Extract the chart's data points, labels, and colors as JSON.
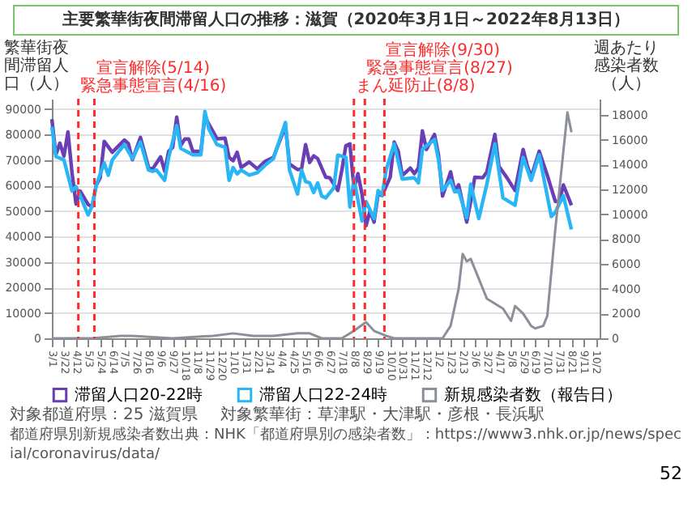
{
  "chart_data": {
    "type": "line",
    "title": "主要繁華街夜間滞留人口の推移：滋賀（2020年3月1日～2022年8月13日）",
    "ylabel": "繁華街夜間滞留人口（人）",
    "y2label": "週あたり感染者数（人）",
    "xlim": [
      "2020-03-01",
      "2022-10-09"
    ],
    "xticks": [
      {
        "value": "2020-03-01",
        "label": "3/1"
      },
      {
        "value": "2020-03-22",
        "label": "3/22"
      },
      {
        "value": "2020-04-12",
        "label": "4/12"
      },
      {
        "value": "2020-05-03",
        "label": "5/3"
      },
      {
        "value": "2020-05-24",
        "label": "5/24"
      },
      {
        "value": "2020-06-14",
        "label": "6/14"
      },
      {
        "value": "2020-07-05",
        "label": "7/5"
      },
      {
        "value": "2020-07-26",
        "label": "7/26"
      },
      {
        "value": "2020-08-16",
        "label": "8/16"
      },
      {
        "value": "2020-09-06",
        "label": "9/6"
      },
      {
        "value": "2020-09-27",
        "label": "9/27"
      },
      {
        "value": "2020-10-18",
        "label": "10/18"
      },
      {
        "value": "2020-11-08",
        "label": "11/8"
      },
      {
        "value": "2020-11-29",
        "label": "11/29"
      },
      {
        "value": "2020-12-20",
        "label": "12/20"
      },
      {
        "value": "2021-01-10",
        "label": "1/10"
      },
      {
        "value": "2021-01-31",
        "label": "1/31"
      },
      {
        "value": "2021-02-21",
        "label": "2/21"
      },
      {
        "value": "2021-03-14",
        "label": "3/14"
      },
      {
        "value": "2021-04-04",
        "label": "4/4"
      },
      {
        "value": "2021-04-25",
        "label": "4/25"
      },
      {
        "value": "2021-05-16",
        "label": "5/16"
      },
      {
        "value": "2021-06-06",
        "label": "6/6"
      },
      {
        "value": "2021-06-27",
        "label": "6/27"
      },
      {
        "value": "2021-07-18",
        "label": "7/18"
      },
      {
        "value": "2021-08-08",
        "label": "8/8"
      },
      {
        "value": "2021-08-29",
        "label": "8/29"
      },
      {
        "value": "2021-09-19",
        "label": "9/19"
      },
      {
        "value": "2021-10-10",
        "label": "10/10"
      },
      {
        "value": "2021-10-31",
        "label": "10/31"
      },
      {
        "value": "2021-11-21",
        "label": "11/21"
      },
      {
        "value": "2021-12-12",
        "label": "12/12"
      },
      {
        "value": "2022-01-02",
        "label": "1/2"
      },
      {
        "value": "2022-01-23",
        "label": "1/23"
      },
      {
        "value": "2022-02-13",
        "label": "2/13"
      },
      {
        "value": "2022-03-06",
        "label": "3/6"
      },
      {
        "value": "2022-03-27",
        "label": "3/27"
      },
      {
        "value": "2022-04-17",
        "label": "4/17"
      },
      {
        "value": "2022-05-08",
        "label": "5/8"
      },
      {
        "value": "2022-05-29",
        "label": "5/29"
      },
      {
        "value": "2022-06-19",
        "label": "6/19"
      },
      {
        "value": "2022-07-10",
        "label": "7/10"
      },
      {
        "value": "2022-07-31",
        "label": "7/31"
      },
      {
        "value": "2022-08-21",
        "label": "8/21"
      },
      {
        "value": "2022-09-11",
        "label": "9/11"
      },
      {
        "value": "2022-10-02",
        "label": "10/2"
      }
    ],
    "ylim": [
      0,
      94000
    ],
    "yticks": [
      0,
      10000,
      20000,
      30000,
      40000,
      50000,
      60000,
      70000,
      80000,
      90000
    ],
    "y2lim": [
      0,
      19300
    ],
    "y2ticks": [
      0,
      2000,
      4000,
      6000,
      8000,
      10000,
      12000,
      14000,
      16000,
      18000
    ],
    "grid": "y",
    "legend": "bottom",
    "series": [
      {
        "name": "滞留人口20-22時",
        "color": "#6a3fb5",
        "x": [
          "2020-03-01",
          "2020-03-08",
          "2020-03-15",
          "2020-03-22",
          "2020-03-29",
          "2020-04-05",
          "2020-04-12",
          "2020-04-19",
          "2020-05-03",
          "2020-05-10",
          "2020-05-17",
          "2020-05-24",
          "2020-05-31",
          "2020-06-14",
          "2020-07-05",
          "2020-07-12",
          "2020-07-19",
          "2020-08-02",
          "2020-08-16",
          "2020-08-23",
          "2020-09-06",
          "2020-09-13",
          "2020-09-20",
          "2020-09-27",
          "2020-10-04",
          "2020-10-11",
          "2020-10-18",
          "2020-10-25",
          "2020-11-01",
          "2020-11-15",
          "2020-11-22",
          "2020-11-29",
          "2020-12-13",
          "2020-12-27",
          "2021-01-03",
          "2021-01-10",
          "2021-01-17",
          "2021-01-24",
          "2021-02-07",
          "2021-02-21",
          "2021-03-07",
          "2021-03-21",
          "2021-04-11",
          "2021-04-18",
          "2021-05-02",
          "2021-05-09",
          "2021-05-16",
          "2021-05-23",
          "2021-05-30",
          "2021-06-06",
          "2021-06-20",
          "2021-06-27",
          "2021-07-11",
          "2021-07-18",
          "2021-07-25",
          "2021-08-01",
          "2021-08-08",
          "2021-08-15",
          "2021-08-22",
          "2021-08-29",
          "2021-09-05",
          "2021-09-12",
          "2021-09-19",
          "2021-09-26",
          "2021-10-10",
          "2021-10-17",
          "2021-10-24",
          "2021-10-31",
          "2021-11-14",
          "2021-11-21",
          "2021-11-28",
          "2021-12-05",
          "2021-12-12",
          "2021-12-26",
          "2022-01-02",
          "2022-01-09",
          "2022-01-23",
          "2022-01-30",
          "2022-02-06",
          "2022-02-20",
          "2022-02-27",
          "2022-03-06",
          "2022-03-20",
          "2022-03-27",
          "2022-04-10",
          "2022-04-17",
          "2022-05-01",
          "2022-05-15",
          "2022-05-29",
          "2022-06-05",
          "2022-06-12",
          "2022-06-26",
          "2022-07-10",
          "2022-07-24",
          "2022-07-31",
          "2022-08-07",
          "2022-08-21"
        ],
        "values": [
          86000,
          72000,
          76600,
          71500,
          81000,
          65000,
          52700,
          57800,
          52500,
          51700,
          60000,
          63000,
          77300,
          73000,
          77800,
          76400,
          70100,
          78800,
          67100,
          66400,
          71200,
          65600,
          73400,
          74900,
          86800,
          75600,
          78200,
          78200,
          73400,
          73400,
          87000,
          84000,
          78300,
          78500,
          71000,
          69700,
          73000,
          67000,
          69200,
          66500,
          69500,
          71000,
          83200,
          68400,
          66200,
          66500,
          76000,
          69000,
          71600,
          70500,
          63200,
          63000,
          58000,
          66000,
          75600,
          76300,
          58800,
          64600,
          56600,
          44200,
          50000,
          45600,
          56600,
          56000,
          63200,
          77000,
          73400,
          63900,
          66800,
          64600,
          66800,
          81400,
          74100,
          80000,
          71900,
          55800,
          65300,
          58000,
          60200,
          45600,
          53700,
          63200,
          63000,
          65300,
          80000,
          67500,
          63000,
          58000,
          74100,
          68000,
          63200,
          73400,
          64000,
          53700,
          53700,
          60200,
          52200
        ]
      },
      {
        "name": "滞留人口22-24時",
        "color": "#29b6f6",
        "x": [
          "2020-03-01",
          "2020-03-08",
          "2020-03-22",
          "2020-04-05",
          "2020-04-12",
          "2020-04-19",
          "2020-05-03",
          "2020-05-10",
          "2020-05-17",
          "2020-05-31",
          "2020-06-07",
          "2020-06-14",
          "2020-07-05",
          "2020-07-19",
          "2020-08-02",
          "2020-08-16",
          "2020-08-23",
          "2020-08-30",
          "2020-09-13",
          "2020-09-20",
          "2020-10-04",
          "2020-10-11",
          "2020-11-01",
          "2020-11-15",
          "2020-11-22",
          "2020-11-29",
          "2020-12-13",
          "2020-12-27",
          "2021-01-03",
          "2021-01-10",
          "2021-01-17",
          "2021-01-24",
          "2021-02-07",
          "2021-02-21",
          "2021-03-07",
          "2021-03-21",
          "2021-04-11",
          "2021-04-18",
          "2021-05-02",
          "2021-05-09",
          "2021-05-16",
          "2021-05-23",
          "2021-05-30",
          "2021-06-06",
          "2021-06-13",
          "2021-06-20",
          "2021-07-04",
          "2021-07-11",
          "2021-07-25",
          "2021-08-01",
          "2021-08-08",
          "2021-08-22",
          "2021-08-29",
          "2021-09-12",
          "2021-09-19",
          "2021-09-26",
          "2021-10-03",
          "2021-10-17",
          "2021-10-31",
          "2021-11-21",
          "2021-11-28",
          "2021-12-05",
          "2021-12-12",
          "2021-12-26",
          "2022-01-02",
          "2022-01-09",
          "2022-01-23",
          "2022-01-30",
          "2022-02-06",
          "2022-02-20",
          "2022-02-27",
          "2022-03-13",
          "2022-03-27",
          "2022-04-10",
          "2022-04-24",
          "2022-05-15",
          "2022-05-29",
          "2022-06-12",
          "2022-06-26",
          "2022-07-17",
          "2022-07-24",
          "2022-08-07",
          "2022-08-21"
        ],
        "values": [
          83000,
          71300,
          70000,
          57800,
          59500,
          56000,
          48400,
          52000,
          60000,
          68800,
          64000,
          70000,
          76000,
          70500,
          77000,
          66000,
          65500,
          66000,
          62000,
          71000,
          83500,
          74500,
          72000,
          72000,
          89000,
          82000,
          76000,
          75000,
          62000,
          67000,
          64500,
          66000,
          64000,
          65000,
          68000,
          70500,
          84700,
          66000,
          56600,
          66000,
          61500,
          61000,
          57200,
          61000,
          55800,
          55100,
          59000,
          71900,
          71000,
          51500,
          62500,
          46000,
          53700,
          47000,
          58000,
          56000,
          66100,
          76300,
          62500,
          63000,
          61000,
          74100,
          75500,
          78000,
          70000,
          58000,
          62000,
          57500,
          58000,
          47300,
          60500,
          47000,
          60500,
          76300,
          55100,
          52200,
          71000,
          62000,
          72000,
          47800,
          49500,
          56000,
          42700
        ]
      },
      {
        "name": "新規感染者数（報告日）",
        "color": "#8a8f99",
        "axis": "y2",
        "x": [
          "2020-03-01",
          "2020-05-10",
          "2020-06-28",
          "2020-07-19",
          "2020-09-27",
          "2020-12-06",
          "2021-01-10",
          "2021-02-14",
          "2021-03-21",
          "2021-05-02",
          "2021-05-23",
          "2021-06-13",
          "2021-07-18",
          "2021-08-08",
          "2021-08-29",
          "2021-09-12",
          "2021-10-03",
          "2021-10-17",
          "2022-01-09",
          "2022-01-23",
          "2022-02-06",
          "2022-02-13",
          "2022-02-20",
          "2022-02-27",
          "2022-03-13",
          "2022-03-27",
          "2022-04-24",
          "2022-05-08",
          "2022-05-15",
          "2022-05-29",
          "2022-06-12",
          "2022-06-19",
          "2022-07-03",
          "2022-07-10",
          "2022-07-24",
          "2022-08-14",
          "2022-08-21"
        ],
        "values": [
          0,
          0,
          200,
          200,
          0,
          200,
          400,
          200,
          200,
          400,
          400,
          0,
          0,
          600,
          1300,
          600,
          200,
          0,
          0,
          1000,
          4000,
          6800,
          6200,
          6400,
          4800,
          3200,
          2400,
          1400,
          2600,
          2000,
          1000,
          800,
          1000,
          1800,
          8800,
          18200,
          16600
        ]
      }
    ],
    "ref_lines": [
      {
        "axis": "x",
        "value": "2020-04-16",
        "label": "緊急事態宣言(4/16)",
        "color": "#ff2a2a",
        "line_style": "dashed"
      },
      {
        "axis": "x",
        "value": "2020-05-14",
        "label": "宣言解除(5/14)",
        "color": "#ff2a2a",
        "line_style": "dashed"
      },
      {
        "axis": "x",
        "value": "2021-08-08",
        "label": "まん延防止(8/8)",
        "color": "#ff2a2a",
        "line_style": "dashed"
      },
      {
        "axis": "x",
        "value": "2021-08-27",
        "label": "緊急事態宣言(8/27)",
        "color": "#ff2a2a",
        "line_style": "dashed"
      },
      {
        "axis": "x",
        "value": "2021-09-30",
        "label": "宣言解除(9/30)",
        "color": "#ff2a2a",
        "line_style": "dashed"
      }
    ],
    "annotations": [
      "対象都道府県：25 滋賀県",
      "対象繁華街：草津駅・大津駅・彦根・長浜駅",
      "都道府県別新規感染者数出典：NHK「都道府県別の感染者数」：https://www3.nhk.or.jp/news/special/coronavirus/data/",
      "52"
    ]
  }
}
